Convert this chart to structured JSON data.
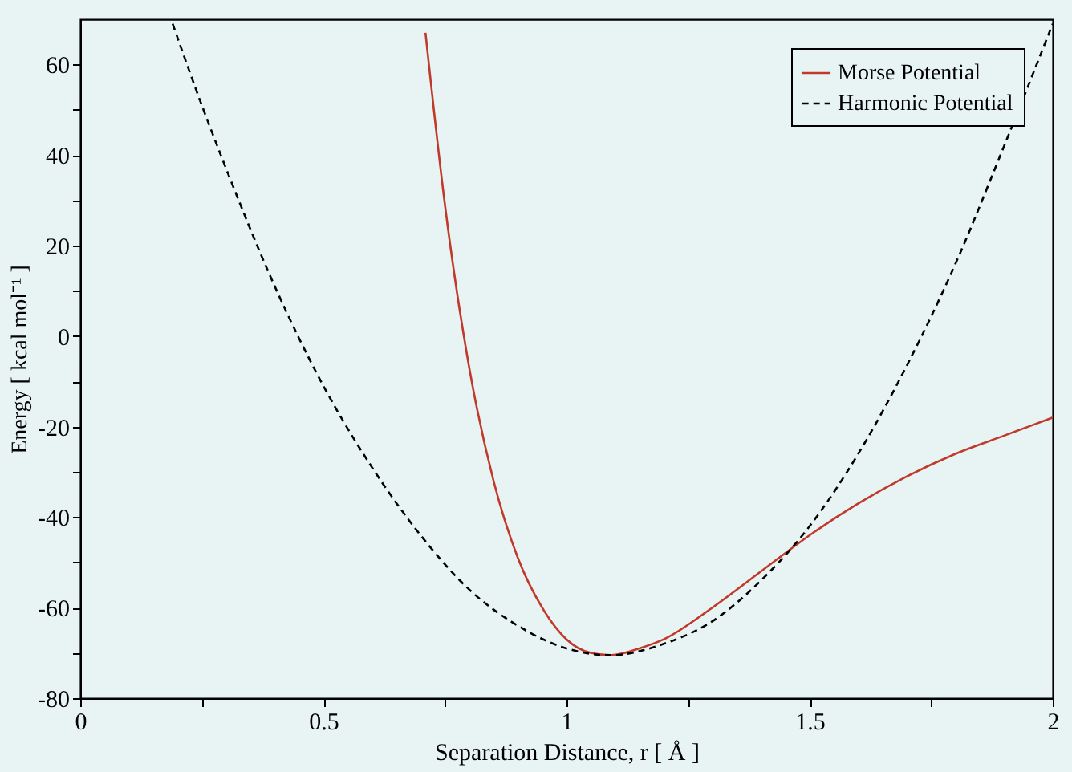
{
  "chart_data": {
    "type": "line",
    "xlabel": "Separation Distance, r [ Å ]",
    "ylabel": "Energy [ kcal mol⁻¹ ]",
    "xlim": [
      0,
      2
    ],
    "ylim": [
      -80,
      70
    ],
    "xticks": [
      0,
      {
        "value": 0.25,
        "label": null
      },
      0.5,
      {
        "value": 0.75,
        "label": null
      },
      1,
      {
        "value": 1.25,
        "label": null
      },
      1.5,
      {
        "value": 1.75,
        "label": null
      },
      2
    ],
    "yticks": [
      -80,
      {
        "value": -70,
        "label": null
      },
      -60,
      {
        "value": -50,
        "label": null
      },
      -40,
      {
        "value": -30,
        "label": null
      },
      -20,
      {
        "value": -10,
        "label": null
      },
      0,
      {
        "value": 10,
        "label": null
      },
      20,
      {
        "value": 30,
        "label": null
      },
      40,
      {
        "value": 50,
        "label": null
      },
      60
    ],
    "grid": false,
    "legend": "top right",
    "marker": "none",
    "series": [
      {
        "name": "Morse Potential",
        "color": "#c0392b",
        "line_style": "solid",
        "x": [
          0.71,
          0.75,
          0.8,
          0.85,
          0.9,
          0.95,
          1.0,
          1.05,
          1.09,
          1.15,
          1.2,
          1.3,
          1.4,
          1.5,
          1.6,
          1.7,
          1.8,
          1.9,
          2.0
        ],
        "values": [
          67,
          29,
          -7,
          -32,
          -49,
          -60,
          -67,
          -70,
          -70.5,
          -69,
          -67,
          -60,
          -52,
          -44,
          -37,
          -31,
          -26,
          -22,
          -18
        ]
      },
      {
        "name": "Harmonic Potential",
        "color": "#000000",
        "line_style": "dashed",
        "x": [
          0.19,
          0.25,
          0.3,
          0.4,
          0.5,
          0.6,
          0.7,
          0.8,
          0.9,
          1.0,
          1.09,
          1.2,
          1.3,
          1.4,
          1.5,
          1.6,
          1.7,
          1.8,
          1.9,
          2.0
        ],
        "values": [
          69,
          51,
          37,
          11,
          -11,
          -29,
          -44,
          -56,
          -64,
          -69,
          -70.5,
          -68,
          -63,
          -54,
          -42,
          -26,
          -6.5,
          16,
          42,
          69
        ]
      }
    ]
  }
}
